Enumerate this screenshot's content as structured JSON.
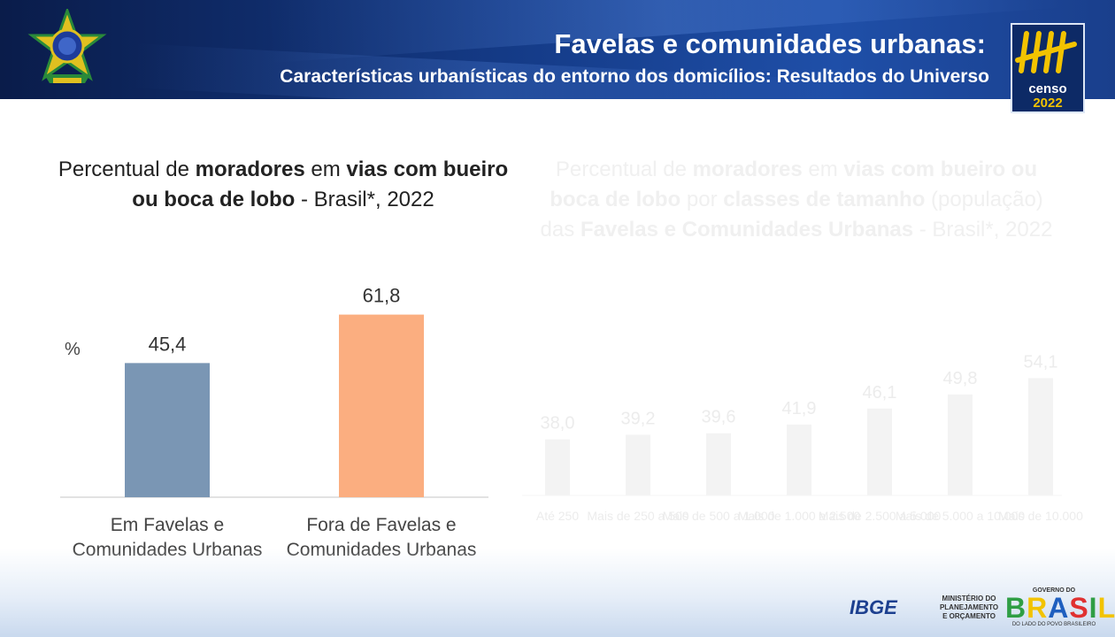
{
  "header": {
    "title": "Favelas e comunidades urbanas:",
    "subtitle": "Características urbanísticas do entorno dos domicílios: Resultados do Universo",
    "censo_word": "censo",
    "censo_year": "2022"
  },
  "chart_title": {
    "p1": "Percentual de ",
    "b1": "moradores",
    "p2": " em ",
    "b2": "vias com bueiro ou boca de lobo",
    "p3": " - Brasil*, 2022"
  },
  "faded_title": {
    "p1": "Percentual de ",
    "b1": "moradores",
    "p2": " em ",
    "b2": "vias com bueiro ou boca de lobo",
    "p3": " por ",
    "b3": "classes de tamanho",
    "p4": " (população) das ",
    "b4": "Favelas e Comunidades Urbanas",
    "p5": " - Brasil*, 2022"
  },
  "chart_data": {
    "type": "bar",
    "ylabel": "%",
    "categories": [
      [
        "Em Favelas e",
        "Comunidades Urbanas"
      ],
      [
        "Fora de Favelas e",
        "Comunidades Urbanas"
      ]
    ],
    "values": [
      45.4,
      61.8
    ],
    "value_labels": [
      "45,4",
      "61,8"
    ],
    "colors": [
      "#7a96b4",
      "#fbae80"
    ],
    "grid": false,
    "ylim": [
      0,
      70
    ]
  },
  "faded_chart_data": {
    "type": "bar",
    "categories": [
      "Até 250",
      "Mais de 250 a 500",
      "Mais de 500 a 1.000",
      "Mais de 1.000 a 2.500",
      "Mais de 2.500 a 5.000",
      "Mais de 5.000 a 10.000",
      "Mais de 10.000"
    ],
    "values": [
      38.0,
      39.2,
      39.6,
      41.9,
      46.1,
      49.8,
      54.1
    ],
    "value_labels": [
      "38,0",
      "39,2",
      "39,6",
      "41,9",
      "46,1",
      "49,8",
      "54,1"
    ],
    "color": "#f3f3f3"
  },
  "footer": {
    "ibge": "IBGE",
    "ministry": "MINISTÉRIO DO PLANEJAMENTO E ORÇAMENTO",
    "gov_top": "GOVERNO DO",
    "gov_brasil": "BRASIL",
    "gov_bottom": "DO LADO DO POVO BRASILEIRO"
  },
  "colors": {
    "header_dark": "#0a1c4a",
    "header_light": "#1f4fa8",
    "accent_yellow": "#f2c300"
  }
}
